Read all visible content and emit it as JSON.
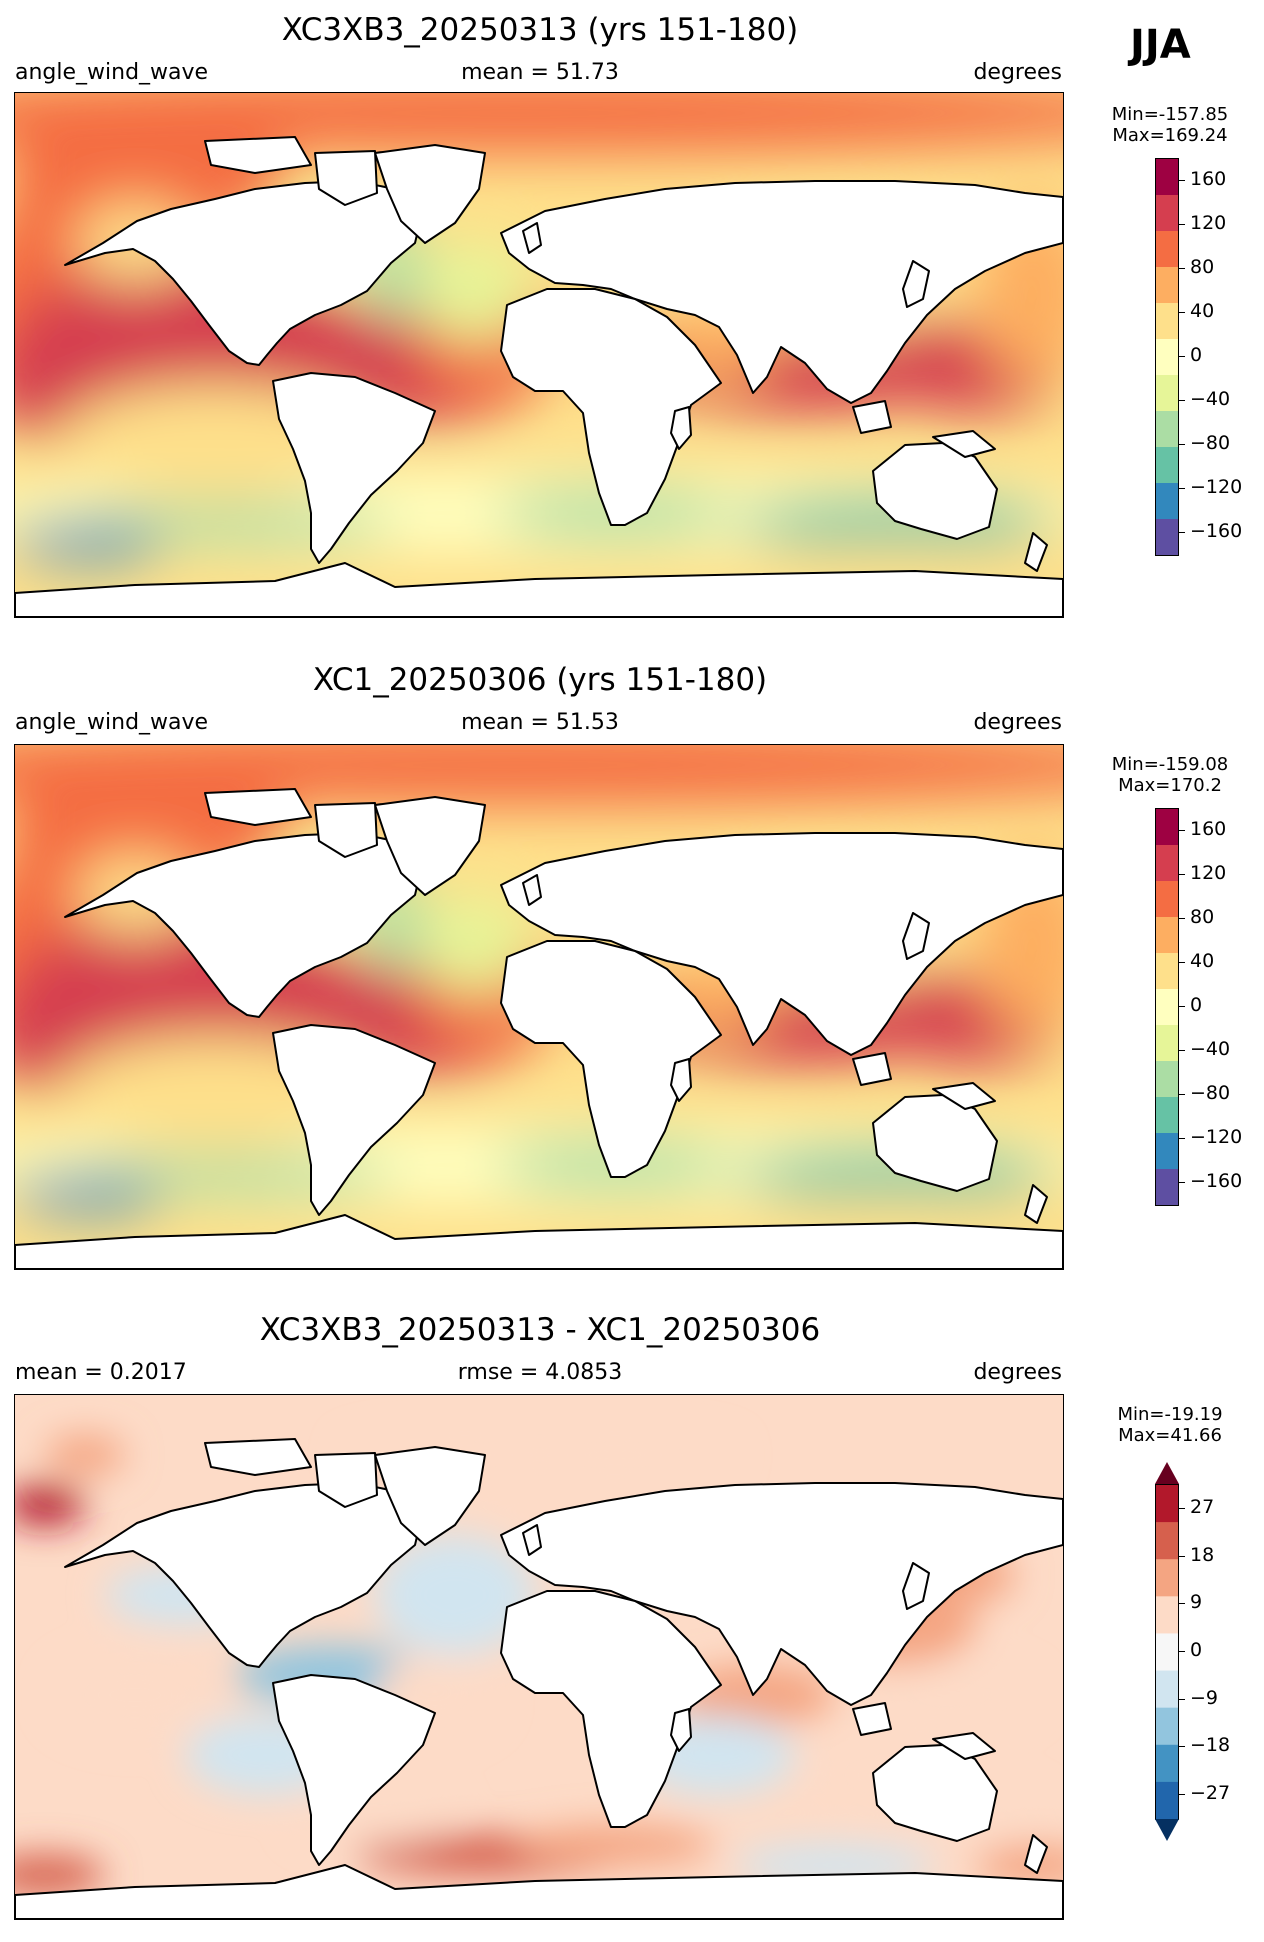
{
  "season": "JJA",
  "panels": [
    {
      "title": "XC3XB3_20250313 (yrs 151-180)",
      "left": "angle_wind_wave",
      "center": "mean = 51.73",
      "right": "degrees",
      "min_label": "Min=-157.85",
      "max_label": "Max=169.24",
      "colormap": "Spectral_r",
      "ticks": [
        "160",
        "120",
        "80",
        "40",
        "0",
        "−40",
        "−80",
        "−120",
        "−160"
      ]
    },
    {
      "title": "XC1_20250306 (yrs 151-180)",
      "left": "angle_wind_wave",
      "center": "mean = 51.53",
      "right": "degrees",
      "min_label": "Min=-159.08",
      "max_label": "Max=170.2",
      "colormap": "Spectral_r",
      "ticks": [
        "160",
        "120",
        "80",
        "40",
        "0",
        "−40",
        "−80",
        "−120",
        "−160"
      ]
    },
    {
      "title": "XC3XB3_20250313 - XC1_20250306",
      "left": "mean = 0.2017",
      "center": "rmse = 4.0853",
      "right": "degrees",
      "min_label": "Min=-19.19",
      "max_label": "Max=41.66",
      "colormap": "RdBu_r",
      "ticks": [
        "27",
        "18",
        "9",
        "0",
        "−9",
        "−18",
        "−27"
      ]
    }
  ],
  "colors": {
    "spectral": [
      "#5e4fa2",
      "#3288bd",
      "#66c2a5",
      "#abdda4",
      "#e6f598",
      "#ffffbf",
      "#fee08b",
      "#fdae61",
      "#f46d43",
      "#d53e4f",
      "#9e0142"
    ],
    "diverging": [
      "#053061",
      "#2166ac",
      "#4393c3",
      "#92c5de",
      "#d1e5f0",
      "#f7f7f7",
      "#fddbc7",
      "#f4a582",
      "#d6604d",
      "#b2182b",
      "#67001f"
    ],
    "land": "#ffffff",
    "coast": "#000000"
  }
}
